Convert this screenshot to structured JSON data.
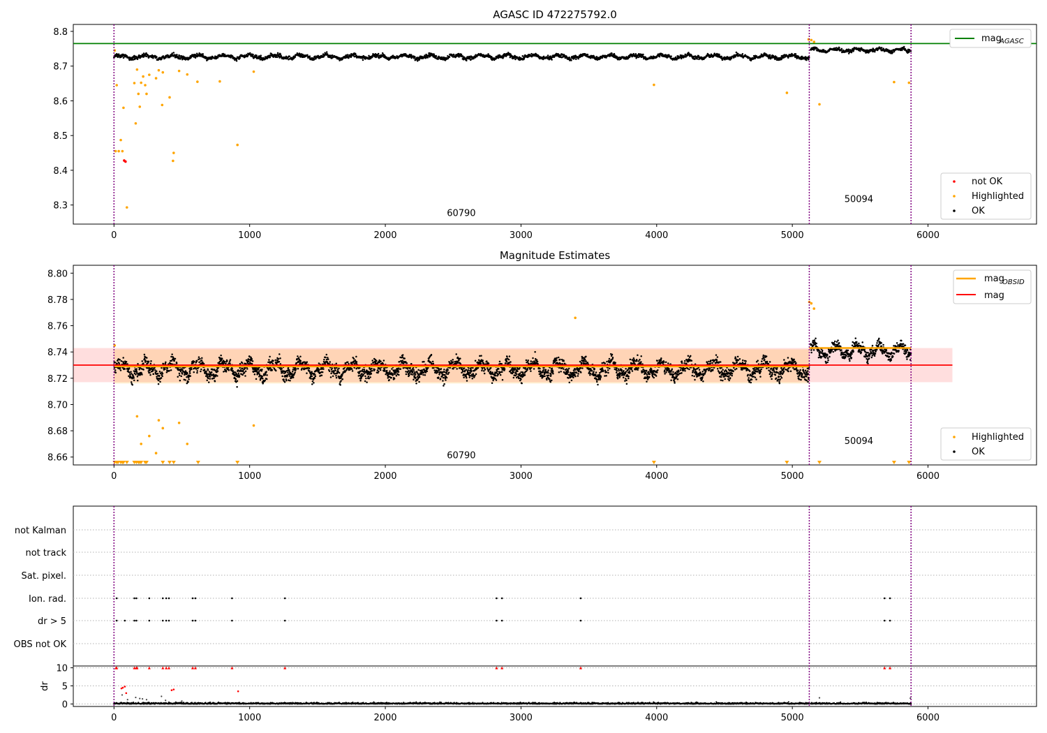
{
  "chart_data": [
    {
      "type": "scatter",
      "title": "AGASC ID 472275792.0",
      "xlim": [
        -300,
        6800
      ],
      "ylim": [
        8.245,
        8.82
      ],
      "xticks": [
        0,
        1000,
        2000,
        3000,
        4000,
        5000,
        6000
      ],
      "yticks": [
        8.3,
        8.4,
        8.5,
        8.6,
        8.7,
        8.8
      ],
      "obsid_boundaries": [
        0,
        5125,
        5875
      ],
      "obsid_labels": [
        {
          "text": "60790",
          "x": 2560,
          "y": 8.268
        },
        {
          "text": "50094",
          "x": 5490,
          "y": 8.308
        }
      ],
      "reference_lines": [
        {
          "name": "mag",
          "subscript": "AGASC",
          "y": 8.765,
          "color": "#008000",
          "x": [
            -300,
            6800
          ]
        }
      ],
      "segments": [
        {
          "x": [
            0,
            5125
          ],
          "level": 8.727,
          "spread": 0.012,
          "period": 190
        },
        {
          "x": [
            5135,
            5875
          ],
          "level": 8.746,
          "spread": 0.01,
          "period": 160
        }
      ],
      "highlighted": [
        [
          5,
          8.745
        ],
        [
          12,
          8.455
        ],
        [
          20,
          8.645
        ],
        [
          35,
          8.455
        ],
        [
          50,
          8.487
        ],
        [
          62,
          8.455
        ],
        [
          70,
          8.58
        ],
        [
          95,
          8.293
        ],
        [
          150,
          8.651
        ],
        [
          160,
          8.535
        ],
        [
          170,
          8.69
        ],
        [
          180,
          8.62
        ],
        [
          190,
          8.583
        ],
        [
          200,
          8.652
        ],
        [
          215,
          8.67
        ],
        [
          230,
          8.645
        ],
        [
          240,
          8.62
        ],
        [
          260,
          8.675
        ],
        [
          310,
          8.665
        ],
        [
          330,
          8.688
        ],
        [
          355,
          8.588
        ],
        [
          360,
          8.682
        ],
        [
          410,
          8.61
        ],
        [
          435,
          8.427
        ],
        [
          440,
          8.45
        ],
        [
          480,
          8.686
        ],
        [
          540,
          8.676
        ],
        [
          615,
          8.655
        ],
        [
          780,
          8.656
        ],
        [
          910,
          8.473
        ],
        [
          1030,
          8.684
        ],
        [
          3980,
          8.646
        ],
        [
          4960,
          8.623
        ],
        [
          5120,
          8.777
        ],
        [
          5140,
          8.775
        ],
        [
          5160,
          8.77
        ],
        [
          5200,
          8.59
        ],
        [
          5750,
          8.654
        ],
        [
          5860,
          8.652
        ]
      ],
      "not_ok": [
        [
          75,
          8.428
        ],
        [
          85,
          8.425
        ]
      ],
      "legend": [
        {
          "label": "not OK",
          "color": "#ff0000"
        },
        {
          "label": "Highlighted",
          "color": "#ffa500"
        },
        {
          "label": "OK",
          "color": "#000000"
        }
      ]
    },
    {
      "type": "scatter",
      "title": "Magnitude Estimates",
      "xlim": [
        -300,
        6800
      ],
      "ylim": [
        8.654,
        8.806
      ],
      "xticks": [
        0,
        1000,
        2000,
        3000,
        4000,
        5000,
        6000
      ],
      "yticks": [
        8.66,
        8.68,
        8.7,
        8.72,
        8.74,
        8.76,
        8.78,
        8.8
      ],
      "obsid_boundaries": [
        0,
        5125,
        5875
      ],
      "obsid_labels": [
        {
          "text": "60790",
          "x": 2560,
          "y": 8.659
        },
        {
          "text": "50094",
          "x": 5490,
          "y": 8.67
        }
      ],
      "mag_line": {
        "name": "mag",
        "y": 8.73,
        "x": [
          -300,
          6180
        ],
        "color": "#ff0000",
        "band": [
          8.717,
          8.743
        ]
      },
      "obsid_mag": [
        {
          "x": [
            0,
            5125
          ],
          "y": 8.729,
          "band": [
            8.716,
            8.742
          ],
          "color": "#ffa500"
        },
        {
          "x": [
            5125,
            5875
          ],
          "y": 8.743,
          "color": "#ffa500"
        }
      ],
      "segments": [
        {
          "x": [
            0,
            5125
          ],
          "level": 8.727,
          "spread": 0.012,
          "period": 190
        },
        {
          "x": [
            5135,
            5875
          ],
          "level": 8.741,
          "spread": 0.01,
          "period": 160
        }
      ],
      "highlighted": [
        [
          5,
          8.745
        ],
        [
          170,
          8.691
        ],
        [
          200,
          8.67
        ],
        [
          260,
          8.676
        ],
        [
          310,
          8.663
        ],
        [
          330,
          8.688
        ],
        [
          360,
          8.682
        ],
        [
          480,
          8.686
        ],
        [
          540,
          8.67
        ],
        [
          1030,
          8.684
        ],
        [
          3400,
          8.766
        ],
        [
          5125,
          8.778
        ],
        [
          5140,
          8.777
        ],
        [
          5160,
          8.773
        ]
      ],
      "offscale_low": [
        5,
        20,
        30,
        50,
        62,
        70,
        95,
        150,
        165,
        180,
        190,
        200,
        230,
        240,
        360,
        410,
        440,
        620,
        910,
        3980,
        4960,
        5200,
        5750,
        5860
      ],
      "legend": [
        {
          "label": "mag",
          "subscript": "OBSID",
          "color": "#ffa500"
        },
        {
          "label": "mag",
          "color": "#ff0000"
        }
      ],
      "legend2": [
        {
          "label": "Highlighted",
          "color": "#ffa500"
        },
        {
          "label": "OK",
          "color": "#000000"
        }
      ]
    },
    {
      "type": "scatter",
      "title": "",
      "xlim": [
        -300,
        6800
      ],
      "xticks": [
        0,
        1000,
        2000,
        3000,
        4000,
        5000,
        6000
      ],
      "flag_labels": [
        "not Kalman",
        "not track",
        "Sat. pixel.",
        "Ion. rad.",
        "dr > 5",
        "OBS not OK"
      ],
      "obsid_boundaries": [
        0,
        5125,
        5875
      ],
      "flag_points": {
        "Ion. rad.": [
          20,
          150,
          165,
          260,
          360,
          385,
          405,
          580,
          600,
          870,
          1260,
          2820,
          2860,
          3440,
          5680,
          5720
        ],
        "dr > 5": [
          20,
          80,
          150,
          165,
          260,
          360,
          385,
          405,
          580,
          600,
          870,
          1260,
          2820,
          2860,
          3440,
          5680,
          5720
        ]
      },
      "dr_panel": {
        "ylabel": "dr",
        "ylim": [
          -0.5,
          10.5
        ],
        "yticks": [
          0,
          5,
          10
        ],
        "baseline_segments": [
          [
            0,
            5125
          ],
          [
            5135,
            5875
          ]
        ],
        "red_capped": [
          15,
          20,
          150,
          165,
          170,
          260,
          360,
          385,
          405,
          580,
          600,
          870,
          1260,
          2820,
          2860,
          3440,
          5680,
          5720
        ],
        "red_points": [
          [
            55,
            4.3
          ],
          [
            65,
            4.5
          ],
          [
            80,
            4.8
          ],
          [
            90,
            3.0
          ],
          [
            425,
            3.8
          ],
          [
            440,
            4.0
          ],
          [
            915,
            3.5
          ]
        ],
        "gray_points": [
          [
            60,
            2.5
          ],
          [
            100,
            1.2
          ],
          [
            160,
            1.8
          ],
          [
            190,
            1.5
          ],
          [
            210,
            1.4
          ],
          [
            240,
            1.2
          ],
          [
            350,
            2.1
          ],
          [
            380,
            1.0
          ],
          [
            500,
            0.8
          ],
          [
            5200,
            1.7
          ],
          [
            5870,
            1.6
          ]
        ]
      }
    }
  ]
}
